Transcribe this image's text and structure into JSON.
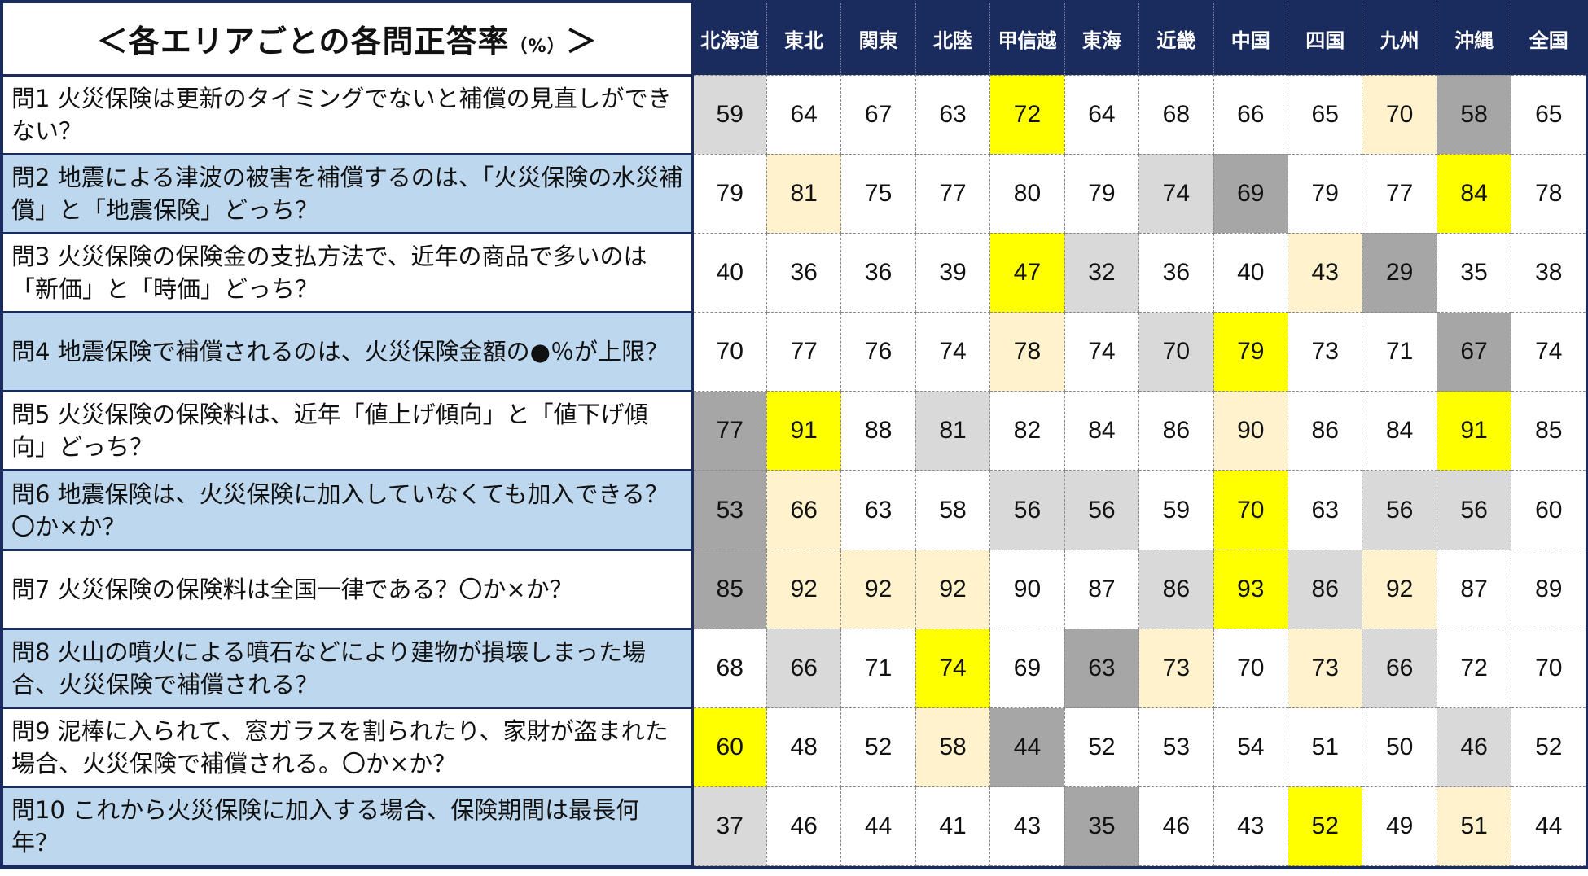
{
  "title": "＜各エリアごとの各問正答率",
  "title_unit": "（%）",
  "title_close": "＞",
  "colors": {
    "header_bg": "#1a2b5e",
    "header_text": "#ffffff",
    "even_row_label_bg": "#bdd7ee",
    "highlight_max": "#ffff00",
    "highlight_second": "#fff2cc",
    "highlight_second_low": "#d9d9d9",
    "highlight_min": "#a6a6a6",
    "plain": "#ffffff"
  },
  "chart_data": {
    "type": "table",
    "columns": [
      "北海道",
      "東北",
      "関東",
      "北陸",
      "甲信越",
      "東海",
      "近畿",
      "中国",
      "四国",
      "九州",
      "沖縄",
      "全国"
    ],
    "rows": [
      {
        "question": "問1 火災保険は更新のタイミングでないと補償の見直しができない？",
        "values": [
          59,
          64,
          67,
          63,
          72,
          64,
          68,
          66,
          65,
          70,
          58,
          65
        ],
        "shading": [
          "second_low",
          "plain",
          "plain",
          "plain",
          "max",
          "plain",
          "plain",
          "plain",
          "plain",
          "second",
          "min",
          "plain"
        ]
      },
      {
        "question": "問2 地震による津波の被害を補償するのは、「火災保険の水災補償」と「地震保険」どっち？",
        "values": [
          79,
          81,
          75,
          77,
          80,
          79,
          74,
          69,
          79,
          77,
          84,
          78
        ],
        "shading": [
          "plain",
          "second",
          "plain",
          "plain",
          "plain",
          "plain",
          "second_low",
          "min",
          "plain",
          "plain",
          "max",
          "plain"
        ]
      },
      {
        "question": "問3 火災保険の保険金の支払方法で、近年の商品で多いのは「新価」と「時価」どっち？",
        "values": [
          40,
          36,
          36,
          39,
          47,
          32,
          36,
          40,
          43,
          29,
          35,
          38
        ],
        "shading": [
          "plain",
          "plain",
          "plain",
          "plain",
          "max",
          "second_low",
          "plain",
          "plain",
          "second",
          "min",
          "plain",
          "plain"
        ]
      },
      {
        "question": "問4 地震保険で補償されるのは、火災保険金額の●％が上限？",
        "values": [
          70,
          77,
          76,
          74,
          78,
          74,
          70,
          79,
          73,
          71,
          67,
          74
        ],
        "shading": [
          "plain",
          "plain",
          "plain",
          "plain",
          "second",
          "plain",
          "second_low",
          "max",
          "plain",
          "plain",
          "min",
          "plain"
        ]
      },
      {
        "question": "問5 火災保険の保険料は、近年「値上げ傾向」と「値下げ傾向」どっち？",
        "values": [
          77,
          91,
          88,
          81,
          82,
          84,
          86,
          90,
          86,
          84,
          91,
          85
        ],
        "shading": [
          "min",
          "max",
          "plain",
          "second_low",
          "plain",
          "plain",
          "plain",
          "second",
          "plain",
          "plain",
          "max",
          "plain"
        ]
      },
      {
        "question": "問6 地震保険は、火災保険に加入していなくても加入できる？〇か×か？",
        "values": [
          53,
          66,
          63,
          58,
          56,
          56,
          59,
          70,
          63,
          56,
          56,
          60
        ],
        "shading": [
          "min",
          "second",
          "plain",
          "plain",
          "second_low",
          "second_low",
          "plain",
          "max",
          "plain",
          "second_low",
          "second_low",
          "plain"
        ]
      },
      {
        "question": "問7 火災保険の保険料は全国一律である？〇か×か？",
        "values": [
          85,
          92,
          92,
          92,
          90,
          87,
          86,
          93,
          86,
          92,
          87,
          89
        ],
        "shading": [
          "min",
          "second",
          "second",
          "second",
          "plain",
          "plain",
          "second_low",
          "max",
          "second_low",
          "second",
          "plain",
          "plain"
        ]
      },
      {
        "question": "問8 火山の噴火による噴石などにより建物が損壊しまった場合、火災保険で補償される？",
        "values": [
          68,
          66,
          71,
          74,
          69,
          63,
          73,
          70,
          73,
          66,
          72,
          70
        ],
        "shading": [
          "plain",
          "second_low",
          "plain",
          "max",
          "plain",
          "min",
          "second",
          "plain",
          "second",
          "second_low",
          "plain",
          "plain"
        ]
      },
      {
        "question": "問9 泥棒に入られて、窓ガラスを割られたり、家財が盗まれた場合、火災保険で補償される。〇か×か？",
        "values": [
          60,
          48,
          52,
          58,
          44,
          52,
          53,
          54,
          51,
          50,
          46,
          52
        ],
        "shading": [
          "max",
          "plain",
          "plain",
          "second",
          "min",
          "plain",
          "plain",
          "plain",
          "plain",
          "plain",
          "second_low",
          "plain"
        ]
      },
      {
        "question": "問10 これから火災保険に加入する場合、保険期間は最長何年？",
        "values": [
          37,
          46,
          44,
          41,
          43,
          35,
          46,
          43,
          52,
          49,
          51,
          44
        ],
        "shading": [
          "second_low",
          "plain",
          "plain",
          "plain",
          "plain",
          "min",
          "plain",
          "plain",
          "max",
          "plain",
          "second",
          "plain"
        ]
      }
    ]
  }
}
